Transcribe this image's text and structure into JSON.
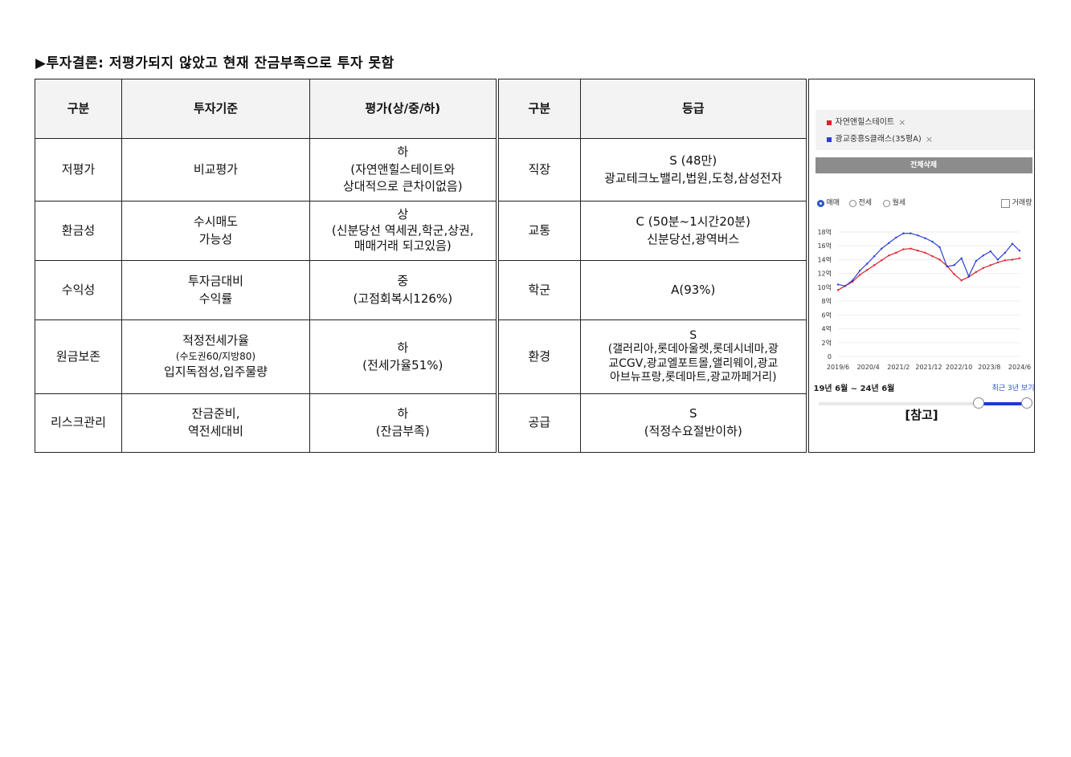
{
  "title": "▶투자결론: 저평가되지 않았고 현재 잔금부족으로 투자 못함",
  "header": {
    "col1": "구분",
    "col2": "투자기준",
    "col3": "평가(상/중/하)",
    "col4": "구분",
    "col5": "등급"
  },
  "rows": [
    {
      "category": "저평가",
      "criteria": [
        "비교평가"
      ],
      "evaluation": [
        "하",
        "(자연앤힐스테이트와",
        "상대적으로 큰차이없음)"
      ],
      "category2": "직장",
      "grade": [
        "S (48만)",
        "광교테크노밸리,법원,도청,삼성전자"
      ]
    },
    {
      "category": "환금성",
      "criteria": [
        "수시매도",
        "가능성"
      ],
      "evaluation": [
        "상",
        "(신분당선 역세권,학군,상권,",
        "매매거래 되고있음)"
      ],
      "category2": "교통",
      "grade": [
        "C (50분~1시간20분)",
        "신분당선,광역버스"
      ]
    },
    {
      "category": "수익성",
      "criteria": [
        "투자금대비",
        "수익률"
      ],
      "evaluation": [
        "중",
        "(고점회복시126%)"
      ],
      "category2": "학군",
      "grade": [
        "A(93%)"
      ]
    },
    {
      "category": "원금보존",
      "criteria": [
        "적정전세가율",
        "(수도권60/지방80)",
        "입지독점성,입주물량"
      ],
      "evaluation": [
        "하",
        "(전세가율51%)"
      ],
      "category2": "환경",
      "grade": [
        "S",
        "(갤러리아,롯데아울렛,롯데시네마,광",
        "교CGV,광교엘포트몰,앨리웨이,광교",
        "아브뉴프랑,롯데마트,광교까페거리)"
      ]
    },
    {
      "category": "리스크관리",
      "criteria": [
        "잔금준비,",
        "역전세대비"
      ],
      "evaluation": [
        "하",
        "(잔금부족)"
      ],
      "category2": "공급",
      "grade": [
        "S",
        "(적정수요절반이하)"
      ]
    }
  ],
  "reference": {
    "legend": [
      {
        "label": "자연앤힐스테이트",
        "color": "#e0202a"
      },
      {
        "label": "광교중흥S클래스(35평A)",
        "color": "#2b3fd6"
      }
    ],
    "legend_close": "×",
    "delete_all": "전체삭제",
    "radio": {
      "sale": "매매",
      "jeonse": "전세",
      "monthly": "월세",
      "selected": "매매"
    },
    "volume_checkbox": "거래량",
    "range_text": "19년 6월 ~ 24년 6월",
    "recent_link": "최근 3년 보기",
    "caption": "[참고]"
  },
  "chart_data": {
    "type": "line",
    "x_labels": [
      "2019/6",
      "2020/4",
      "2021/2",
      "2021/12",
      "2022/10",
      "2023/8",
      "2024/6"
    ],
    "y_ticks": [
      "0",
      "2억",
      "4억",
      "6억",
      "8억",
      "10억",
      "12억",
      "14억",
      "16억",
      "18억"
    ],
    "ylim": [
      0,
      18
    ],
    "yunit": "억",
    "series": [
      {
        "name": "자연앤힐스테이트",
        "color": "#e0202a",
        "values": [
          9.6,
          10.2,
          10.8,
          11.8,
          12.5,
          13.2,
          13.9,
          14.6,
          15.0,
          15.5,
          15.6,
          15.3,
          15.0,
          14.5,
          14.0,
          13.1,
          11.9,
          11.0,
          11.5,
          12.2,
          12.8,
          13.2,
          13.6,
          13.9,
          14.0,
          14.2
        ]
      },
      {
        "name": "광교중흥S클래스(35평A)",
        "color": "#2b3fd6",
        "values": [
          10.4,
          10.2,
          11.0,
          12.4,
          13.4,
          14.5,
          15.6,
          16.4,
          17.2,
          17.8,
          17.8,
          17.5,
          17.1,
          16.6,
          15.8,
          13.0,
          13.2,
          14.2,
          11.6,
          13.8,
          14.6,
          15.2,
          14.0,
          15.0,
          16.3,
          15.3
        ]
      }
    ]
  }
}
